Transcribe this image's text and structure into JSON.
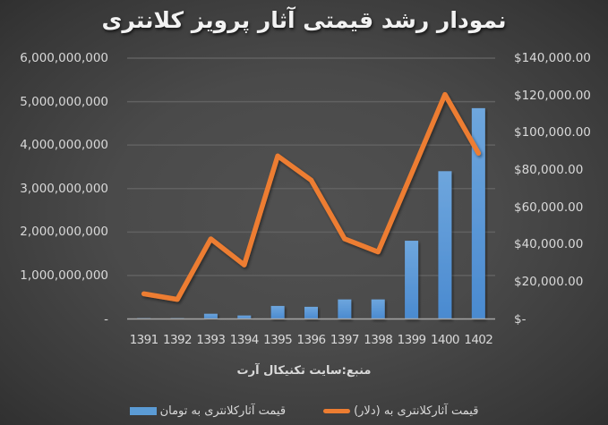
{
  "chart_data": {
    "type": "bar+line",
    "title": "نمودار رشد قیمتی آثار پرویز کلانتری",
    "xlabel": "منبع:سایت تکنیکال آرت",
    "ylabel": "",
    "categories": [
      "1391",
      "1392",
      "1393",
      "1394",
      "1395",
      "1396",
      "1397",
      "1398",
      "1399",
      "1400",
      "1402"
    ],
    "series": [
      {
        "name": "قیمت آثارکلانتری  به تومان",
        "type": "bar",
        "axis": "left",
        "color": "#5b9bd5",
        "values": [
          20000000,
          20000000,
          120000000,
          80000000,
          300000000,
          280000000,
          450000000,
          450000000,
          1800000000,
          3400000000,
          4850000000
        ]
      },
      {
        "name": "قیمت آثارکلانتری  به (دلار)",
        "type": "line",
        "axis": "right",
        "color": "#ed7d31",
        "values": [
          13500,
          10500,
          43000,
          29000,
          87500,
          74500,
          43000,
          36000,
          78000,
          120500,
          89000
        ]
      }
    ],
    "y_left": {
      "ylim": [
        0,
        6000000000
      ],
      "ticks": [
        "-",
        "1,000,000,000",
        "2,000,000,000",
        "3,000,000,000",
        "4,000,000,000",
        "5,000,000,000",
        "6,000,000,000"
      ]
    },
    "y_right": {
      "ylim": [
        0,
        140000
      ],
      "ticks": [
        "$-",
        "$20,000.00",
        "$40,000.00",
        "$60,000.00",
        "$80,000.00",
        "$100,000.00",
        "$120,000.00",
        "$140,000.00"
      ]
    },
    "grid": true,
    "legend_position": "bottom"
  },
  "legend": {
    "bar_label": "قیمت آثارکلانتری  به تومان",
    "line_label": "قیمت آثارکلانتری  به (دلار)"
  }
}
